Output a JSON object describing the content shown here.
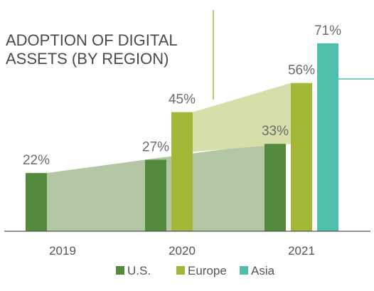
{
  "chart_data": {
    "type": "bar",
    "title_lines": [
      "ADOPTION OF DIGITAL",
      "ASSETS (BY REGION)"
    ],
    "categories": [
      "2019",
      "2020",
      "2021"
    ],
    "series": [
      {
        "name": "U.S.",
        "color": "#538a3d",
        "values": [
          22,
          27,
          33
        ],
        "labels": [
          "22%",
          "27%",
          "33%"
        ]
      },
      {
        "name": "Europe",
        "color": "#a3b837",
        "values": [
          null,
          45,
          56
        ],
        "labels": [
          "",
          "45%",
          "56%"
        ]
      },
      {
        "name": "Asia",
        "color": "#4fbfab",
        "values": [
          null,
          null,
          71
        ],
        "labels": [
          "",
          "",
          "71%"
        ]
      }
    ],
    "ylim": [
      0,
      75
    ],
    "grid": false,
    "legend_position": "bottom",
    "area_colors": {
      "us": "#b3c7a4",
      "europe": "#d6dfaa"
    },
    "line_colors": {
      "europe": "#a3b837",
      "asia": "#4fbfab"
    }
  }
}
